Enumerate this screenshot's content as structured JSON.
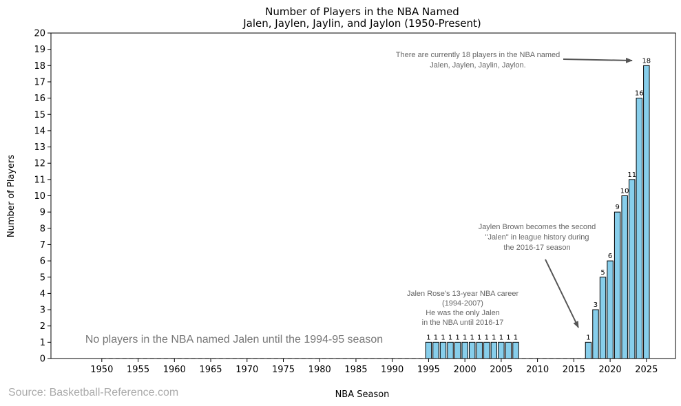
{
  "chart_data": {
    "type": "bar",
    "title": [
      "Number of Players in the NBA Named",
      "Jalen, Jaylen, Jaylin, and Jaylon (1950-Present)"
    ],
    "xlabel": "NBA Season",
    "ylabel": "Number of Players",
    "xlim": [
      1943,
      2029
    ],
    "ylim": [
      0,
      20
    ],
    "xticks": [
      1950,
      1955,
      1960,
      1965,
      1970,
      1975,
      1980,
      1985,
      1990,
      1995,
      2000,
      2005,
      2010,
      2015,
      2020,
      2025
    ],
    "yticks": [
      0,
      1,
      2,
      3,
      4,
      5,
      6,
      7,
      8,
      9,
      10,
      11,
      12,
      13,
      14,
      15,
      16,
      17,
      18,
      19,
      20
    ],
    "bar_color": "#87ceeb",
    "bar_edge_color": "#000000",
    "zero_line_style": "dashed",
    "x": [
      1995,
      1996,
      1997,
      1998,
      1999,
      2000,
      2001,
      2002,
      2003,
      2004,
      2005,
      2006,
      2007,
      2017,
      2018,
      2019,
      2020,
      2021,
      2022,
      2023,
      2024,
      2025
    ],
    "values": [
      1,
      1,
      1,
      1,
      1,
      1,
      1,
      1,
      1,
      1,
      1,
      1,
      1,
      1,
      3,
      5,
      6,
      9,
      10,
      11,
      16,
      18
    ],
    "annotations": [
      {
        "lines": [
          "No players in the NBA named Jalen until the 1994-95 season"
        ],
        "style": "large"
      },
      {
        "lines": [
          "Jalen Rose's 13-year NBA career",
          "(1994-2007)",
          "He was the only Jalen",
          "in the NBA until 2016-17"
        ],
        "style": "small"
      },
      {
        "lines": [
          "Jaylen Brown becomes the second",
          "\"Jalen\" in league history during",
          "the 2016-17 season"
        ],
        "style": "small",
        "arrow_to": [
          2017,
          1.8
        ]
      },
      {
        "lines": [
          "There are currently 18 players in the NBA named",
          "Jalen, Jaylen, Jaylin, Jaylon."
        ],
        "style": "small",
        "arrow_to": [
          2024,
          18.4
        ]
      }
    ],
    "source": "Source: Basketball-Reference.com"
  }
}
